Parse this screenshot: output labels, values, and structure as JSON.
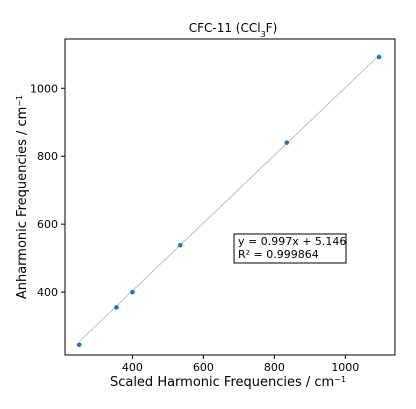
{
  "chart_data": {
    "type": "scatter",
    "title_main": "CFC-11 (CCl",
    "title_sub": "3",
    "title_tail": "F)",
    "xlabel_main": "Scaled Harmonic Frequencies / cm",
    "xlabel_sup": "−1",
    "ylabel_main": "Anharmonic Frequencies / cm",
    "ylabel_sup": "−1",
    "xlim": [
      210,
      1140
    ],
    "ylim": [
      215,
      1145
    ],
    "x_ticks": [
      400,
      600,
      800,
      1000
    ],
    "y_ticks": [
      400,
      600,
      800,
      1000
    ],
    "grid": false,
    "points": {
      "x": [
        250,
        355,
        400,
        535,
        835,
        1095
      ],
      "y": [
        245,
        355,
        400,
        538,
        840,
        1092
      ]
    },
    "fit_line": {
      "slope": 0.997,
      "intercept": 5.146,
      "x_range": [
        250,
        1095
      ]
    },
    "annotation": {
      "line1": "y = 0.997x + 5.146",
      "line2": "R² = 0.999864"
    },
    "colors": {
      "points": "#1f77b4",
      "fit_line": "#b0b0b0",
      "axes": "#000000"
    }
  }
}
